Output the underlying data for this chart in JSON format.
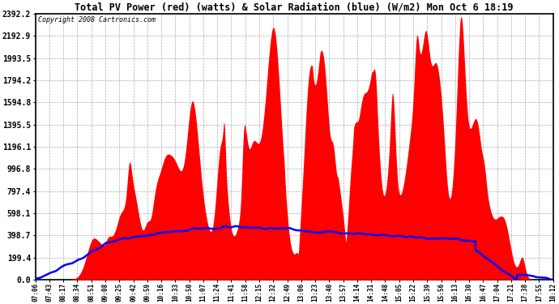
{
  "title": "Total PV Power (red) (watts) & Solar Radiation (blue) (W/m2) Mon Oct 6 18:19",
  "copyright": "Copyright 2008 Cartronics.com",
  "background_color": "#ffffff",
  "plot_bg_color": "#ffffff",
  "grid_color": "#aaaaaa",
  "pv_color": "#ff0000",
  "solar_color": "#0000ff",
  "yticks": [
    0.0,
    199.4,
    398.7,
    598.1,
    797.4,
    996.8,
    1196.1,
    1395.5,
    1594.8,
    1794.2,
    1993.5,
    2192.9,
    2392.2
  ],
  "ymax": 2392.2,
  "time_labels": [
    "07:06",
    "07:43",
    "08:17",
    "08:34",
    "08:51",
    "09:08",
    "09:25",
    "09:42",
    "09:59",
    "10:16",
    "10:33",
    "10:50",
    "11:07",
    "11:24",
    "11:41",
    "11:58",
    "12:15",
    "12:32",
    "12:49",
    "13:06",
    "13:23",
    "13:40",
    "13:57",
    "14:14",
    "14:31",
    "14:48",
    "15:05",
    "15:22",
    "15:39",
    "15:56",
    "16:13",
    "16:30",
    "16:47",
    "17:04",
    "17:21",
    "17:38",
    "17:55",
    "18:12"
  ],
  "figsize": [
    6.9,
    3.75
  ],
  "dpi": 100
}
